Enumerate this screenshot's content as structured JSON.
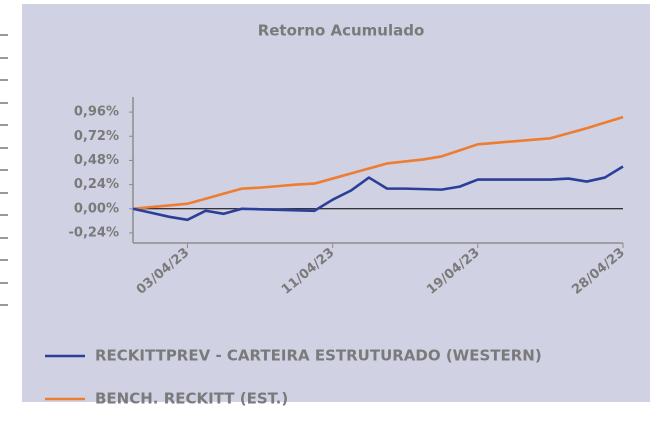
{
  "chart_data": {
    "type": "line",
    "title": "Retorno Acumulado",
    "categories": [
      null,
      null,
      null,
      "03/04/23",
      null,
      null,
      null,
      null,
      null,
      null,
      null,
      "11/04/23",
      null,
      null,
      null,
      null,
      null,
      null,
      null,
      "19/04/23",
      null,
      null,
      null,
      null,
      null,
      null,
      null,
      "28/04/23"
    ],
    "series": [
      {
        "name": "RECKITTPREV - CARTEIRA ESTRUTURADO (WESTERN)",
        "color": "#2b3f99",
        "values": [
          0.0,
          -0.04,
          -0.08,
          -0.11,
          -0.02,
          -0.05,
          0.0,
          -0.005,
          -0.01,
          -0.015,
          -0.02,
          0.09,
          0.18,
          0.31,
          0.2,
          0.2,
          0.195,
          0.19,
          0.22,
          0.29,
          0.29,
          0.29,
          0.29,
          0.29,
          0.3,
          0.27,
          0.31,
          0.42
        ]
      },
      {
        "name": "BENCH. RECKITT (EST.)",
        "color": "#ed7d31",
        "values": [
          0.0,
          0.017,
          0.033,
          0.05,
          0.1,
          0.15,
          0.2,
          0.21,
          0.225,
          0.24,
          0.25,
          0.3,
          0.35,
          0.4,
          0.45,
          0.47,
          0.49,
          0.52,
          0.58,
          0.64,
          0.655,
          0.67,
          0.685,
          0.7,
          0.75,
          0.8,
          0.855,
          0.91
        ]
      }
    ],
    "ylim": [
      -0.34,
      1.11
    ],
    "yticks": [
      {
        "value": -0.24,
        "label": "-0,24%"
      },
      {
        "value": 0,
        "label": "0,00%"
      },
      {
        "value": 0.24,
        "label": "0,24%"
      },
      {
        "value": 0.48,
        "label": "0,48%"
      },
      {
        "value": 0.72,
        "label": "0,72%"
      },
      {
        "value": 0.96,
        "label": "0,96%"
      }
    ],
    "legend": "bottom-left"
  }
}
